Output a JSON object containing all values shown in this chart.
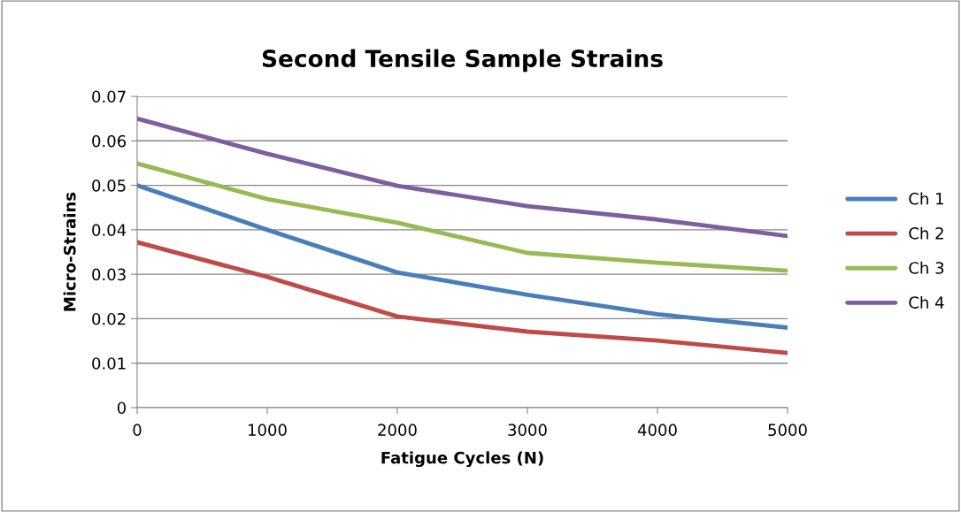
{
  "chart_data": {
    "type": "line",
    "title": "Second Tensile Sample Strains",
    "xlabel": "Fatigue Cycles (N)",
    "ylabel": "Micro-Strains",
    "x": [
      0,
      1000,
      2000,
      3000,
      4000,
      5000
    ],
    "series": [
      {
        "name": "Ch 1",
        "color": "#4a7ebb",
        "values": [
          0.05,
          0.04,
          0.0304,
          0.0254,
          0.021,
          0.018
        ]
      },
      {
        "name": "Ch 2",
        "color": "#be4b48",
        "values": [
          0.0372,
          0.0294,
          0.0205,
          0.0171,
          0.0151,
          0.0123
        ]
      },
      {
        "name": "Ch 3",
        "color": "#98b954",
        "values": [
          0.0549,
          0.0469,
          0.0416,
          0.0348,
          0.0326,
          0.0308
        ]
      },
      {
        "name": "Ch 4",
        "color": "#7d5fa0",
        "values": [
          0.065,
          0.0571,
          0.0499,
          0.0453,
          0.0423,
          0.0386
        ]
      }
    ],
    "xlim": [
      0,
      5000
    ],
    "xticks": [
      0,
      1000,
      2000,
      3000,
      4000,
      5000
    ],
    "ylim": [
      0,
      0.07
    ],
    "yticks": [
      {
        "value": 0,
        "label": "0"
      },
      0.01,
      0.02,
      0.03,
      0.04,
      0.05,
      0.06,
      0.07
    ],
    "grid": "y",
    "legend": "right",
    "marker": "none",
    "line_style": "solid"
  }
}
